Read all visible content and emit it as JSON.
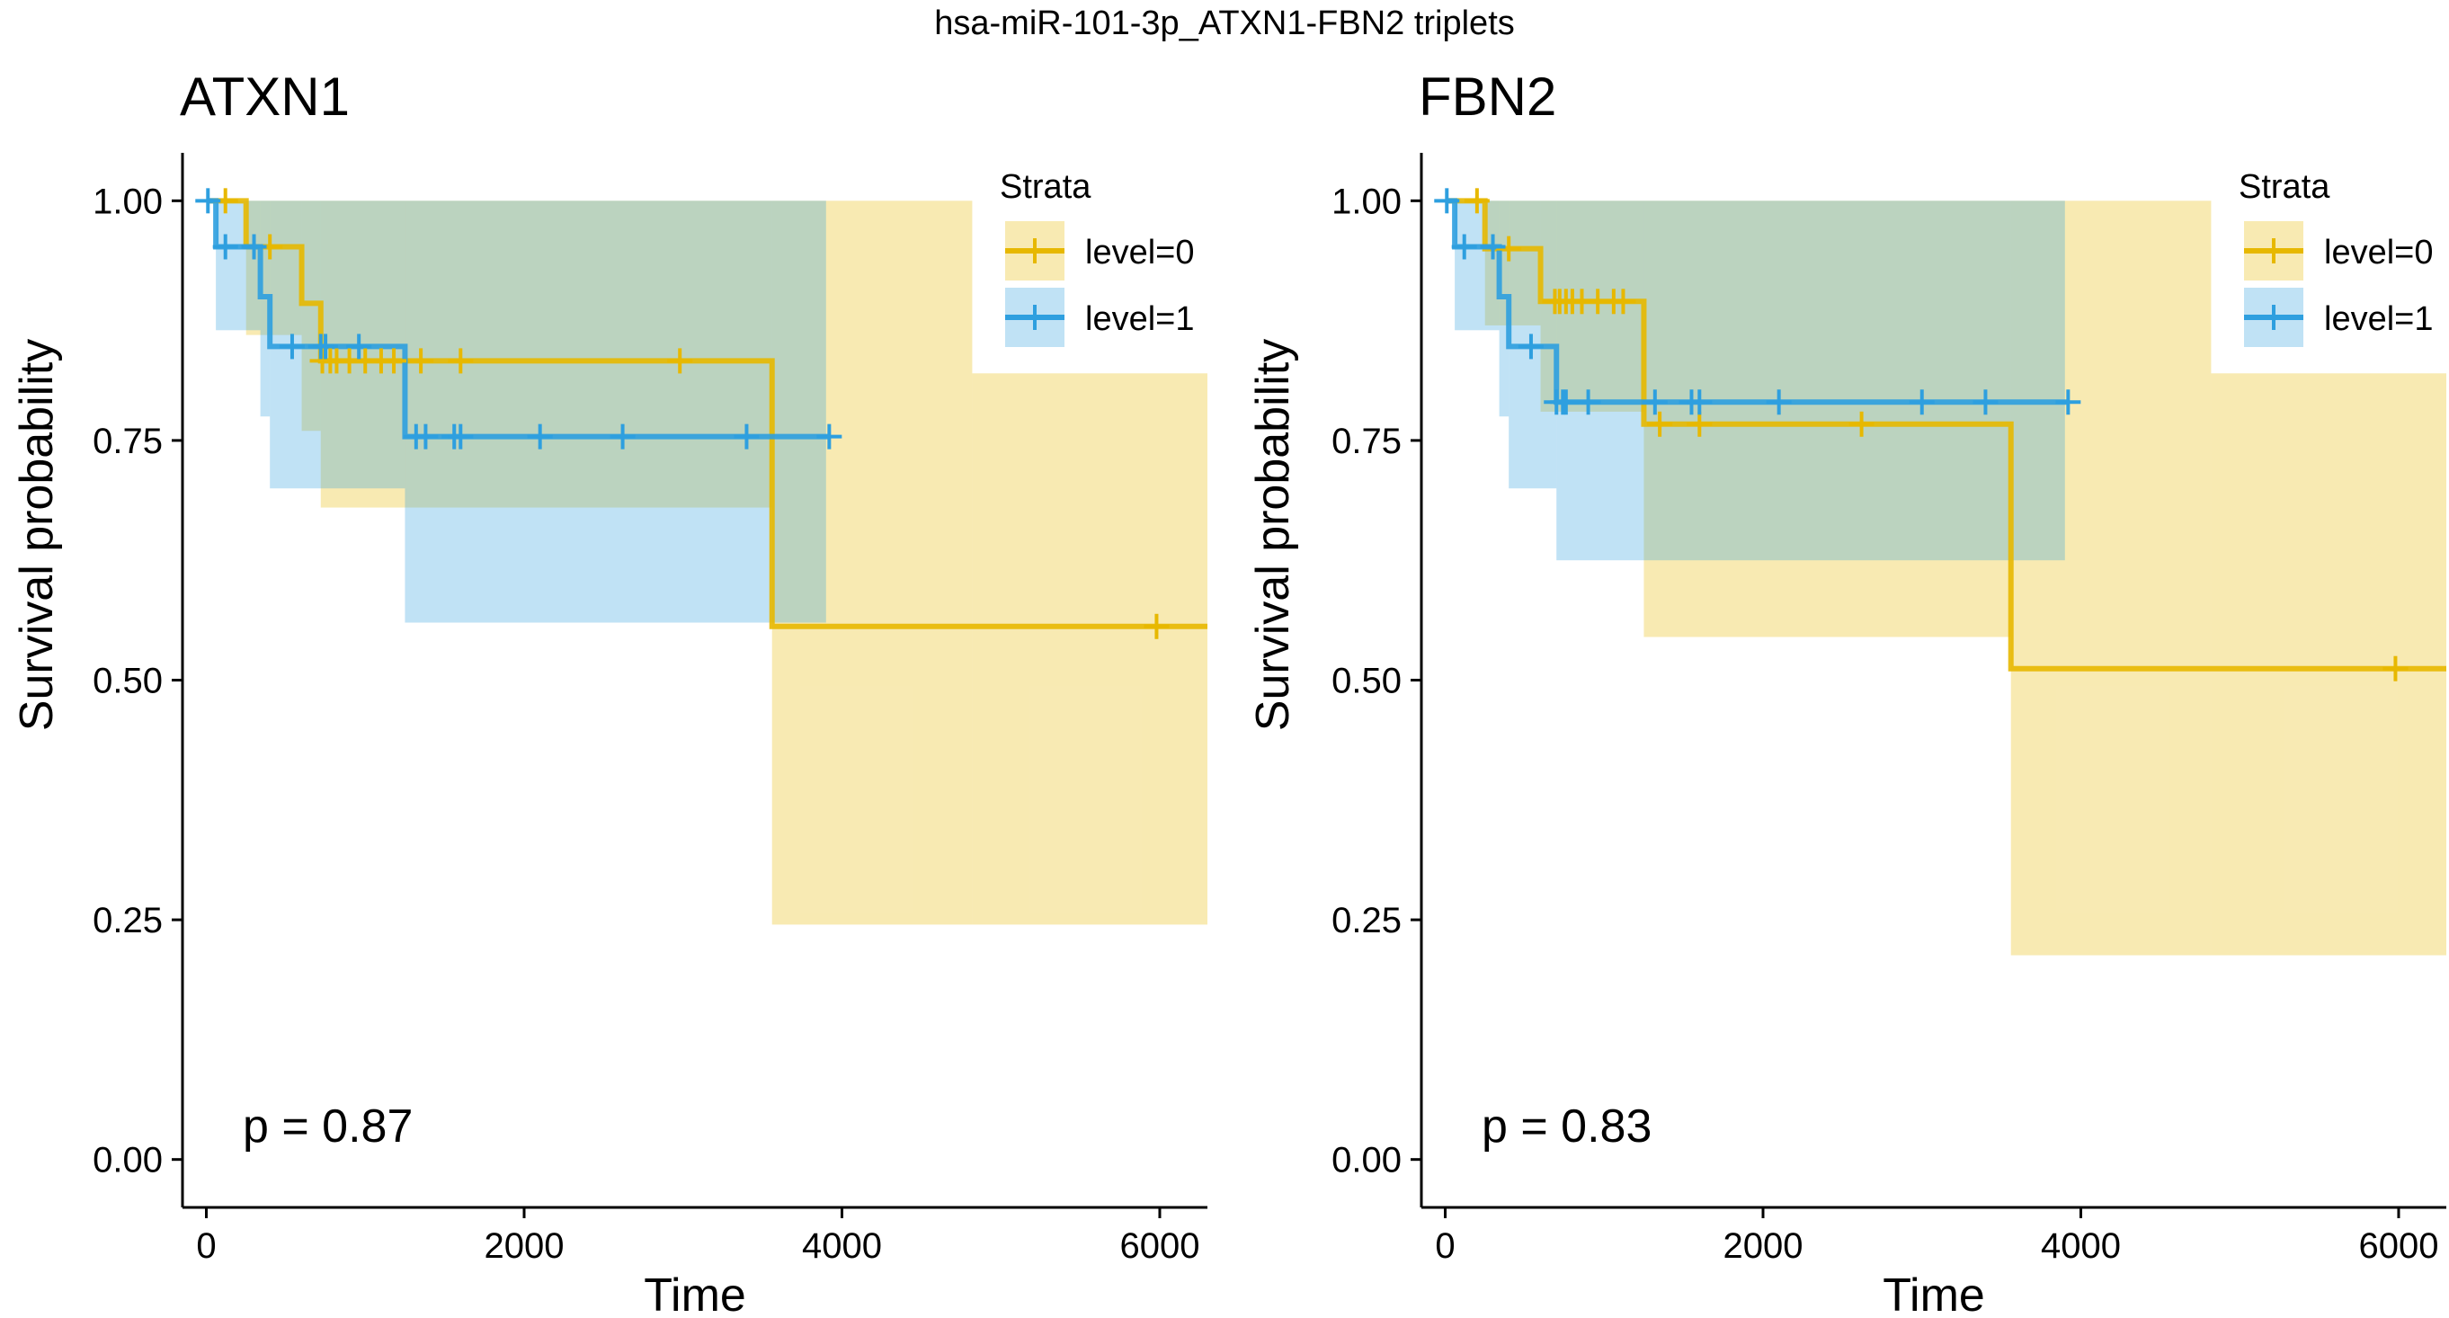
{
  "figure": {
    "title": "hsa-miR-101-3p_ATXN1-FBN2 triplets"
  },
  "colors": {
    "level0": "#E7B800",
    "level1": "#2E9FDF",
    "axis": "#000000"
  },
  "chart_data": [
    {
      "type": "line",
      "subtype": "kaplan-meier",
      "title": "ATXN1",
      "xlabel": "Time",
      "ylabel": "Survival probability",
      "xlim": [
        -150,
        6300
      ],
      "ylim": [
        -0.05,
        1.05
      ],
      "xticks": [
        0,
        2000,
        4000,
        6000
      ],
      "yticks": [
        0.0,
        0.25,
        0.5,
        0.75,
        1.0
      ],
      "xtick_labels": [
        "0",
        "2000",
        "4000",
        "6000"
      ],
      "ytick_labels": [
        "0.00",
        "0.25",
        "0.50",
        "0.75",
        "1.00"
      ],
      "pvalue": "p = 0.87",
      "legend": {
        "title": "Strata",
        "position": "top-right",
        "entries": [
          "level=0",
          "level=1"
        ]
      },
      "series": [
        {
          "name": "level=0",
          "color_key": "level0",
          "steps": [
            [
              0,
              1.0
            ],
            [
              250,
              0.952
            ],
            [
              600,
              0.893
            ],
            [
              720,
              0.833
            ],
            [
              3560,
              0.556
            ],
            [
              6300,
              0.556
            ]
          ],
          "ci": [
            [
              0,
              1.0,
              1.0
            ],
            [
              250,
              0.86,
              1.0
            ],
            [
              600,
              0.76,
              1.0
            ],
            [
              720,
              0.68,
              1.0
            ],
            [
              3560,
              0.245,
              1.0
            ],
            [
              4820,
              0.245,
              0.82
            ],
            [
              6300,
              0.245,
              0.82
            ]
          ],
          "ci_end": 6300,
          "censor": [
            [
              120,
              1.0
            ],
            [
              400,
              0.952
            ],
            [
              730,
              0.833
            ],
            [
              780,
              0.833
            ],
            [
              820,
              0.833
            ],
            [
              900,
              0.833
            ],
            [
              1000,
              0.833
            ],
            [
              1100,
              0.833
            ],
            [
              1180,
              0.833
            ],
            [
              1350,
              0.833
            ],
            [
              1600,
              0.833
            ],
            [
              2980,
              0.833
            ],
            [
              5980,
              0.556
            ]
          ]
        },
        {
          "name": "level=1",
          "color_key": "level1",
          "steps": [
            [
              0,
              1.0
            ],
            [
              60,
              0.952
            ],
            [
              340,
              0.9
            ],
            [
              400,
              0.848
            ],
            [
              1250,
              0.754
            ],
            [
              3920,
              0.754
            ]
          ],
          "ci": [
            [
              0,
              1.0,
              1.0
            ],
            [
              60,
              0.865,
              1.0
            ],
            [
              340,
              0.775,
              1.0
            ],
            [
              400,
              0.7,
              1.0
            ],
            [
              1250,
              0.56,
              1.0
            ],
            [
              3900,
              0.56,
              1.0
            ]
          ],
          "ci_end": 3900,
          "censor": [
            [
              10,
              1.0
            ],
            [
              120,
              0.952
            ],
            [
              300,
              0.952
            ],
            [
              540,
              0.848
            ],
            [
              720,
              0.848
            ],
            [
              750,
              0.848
            ],
            [
              960,
              0.848
            ],
            [
              1320,
              0.754
            ],
            [
              1380,
              0.754
            ],
            [
              1560,
              0.754
            ],
            [
              1600,
              0.754
            ],
            [
              2100,
              0.754
            ],
            [
              2620,
              0.754
            ],
            [
              3400,
              0.754
            ],
            [
              3920,
              0.754
            ]
          ]
        }
      ]
    },
    {
      "type": "line",
      "subtype": "kaplan-meier",
      "title": "FBN2",
      "xlabel": "Time",
      "ylabel": "Survival probability",
      "xlim": [
        -150,
        6300
      ],
      "ylim": [
        -0.05,
        1.05
      ],
      "xticks": [
        0,
        2000,
        4000,
        6000
      ],
      "yticks": [
        0.0,
        0.25,
        0.5,
        0.75,
        1.0
      ],
      "xtick_labels": [
        "0",
        "2000",
        "4000",
        "6000"
      ],
      "ytick_labels": [
        "0.00",
        "0.25",
        "0.50",
        "0.75",
        "1.00"
      ],
      "pvalue": "p = 0.83",
      "legend": {
        "title": "Strata",
        "position": "top-right",
        "entries": [
          "level=0",
          "level=1"
        ]
      },
      "series": [
        {
          "name": "level=0",
          "color_key": "level0",
          "steps": [
            [
              0,
              1.0
            ],
            [
              250,
              0.95
            ],
            [
              600,
              0.895
            ],
            [
              1250,
              0.767
            ],
            [
              3560,
              0.512
            ],
            [
              6300,
              0.512
            ]
          ],
          "ci": [
            [
              0,
              1.0,
              1.0
            ],
            [
              250,
              0.87,
              1.0
            ],
            [
              600,
              0.78,
              1.0
            ],
            [
              1250,
              0.545,
              1.0
            ],
            [
              3560,
              0.213,
              1.0
            ],
            [
              4820,
              0.213,
              0.82
            ],
            [
              6300,
              0.213,
              0.82
            ]
          ],
          "ci_end": 6300,
          "censor": [
            [
              200,
              1.0
            ],
            [
              400,
              0.95
            ],
            [
              690,
              0.895
            ],
            [
              720,
              0.895
            ],
            [
              760,
              0.895
            ],
            [
              800,
              0.895
            ],
            [
              860,
              0.895
            ],
            [
              960,
              0.895
            ],
            [
              1060,
              0.895
            ],
            [
              1120,
              0.895
            ],
            [
              1350,
              0.767
            ],
            [
              1600,
              0.767
            ],
            [
              2620,
              0.767
            ],
            [
              5980,
              0.512
            ]
          ]
        },
        {
          "name": "level=1",
          "color_key": "level1",
          "steps": [
            [
              0,
              1.0
            ],
            [
              60,
              0.952
            ],
            [
              340,
              0.9
            ],
            [
              400,
              0.848
            ],
            [
              700,
              0.79
            ],
            [
              3920,
              0.79
            ]
          ],
          "ci": [
            [
              0,
              1.0,
              1.0
            ],
            [
              60,
              0.865,
              1.0
            ],
            [
              340,
              0.775,
              1.0
            ],
            [
              400,
              0.7,
              1.0
            ],
            [
              700,
              0.625,
              1.0
            ],
            [
              3900,
              0.625,
              1.0
            ]
          ],
          "ci_end": 3900,
          "censor": [
            [
              10,
              1.0
            ],
            [
              120,
              0.952
            ],
            [
              300,
              0.952
            ],
            [
              540,
              0.848
            ],
            [
              700,
              0.79
            ],
            [
              740,
              0.79
            ],
            [
              760,
              0.79
            ],
            [
              900,
              0.79
            ],
            [
              1320,
              0.79
            ],
            [
              1550,
              0.79
            ],
            [
              1600,
              0.79
            ],
            [
              2100,
              0.79
            ],
            [
              3000,
              0.79
            ],
            [
              3400,
              0.79
            ],
            [
              3920,
              0.79
            ]
          ]
        }
      ]
    }
  ]
}
